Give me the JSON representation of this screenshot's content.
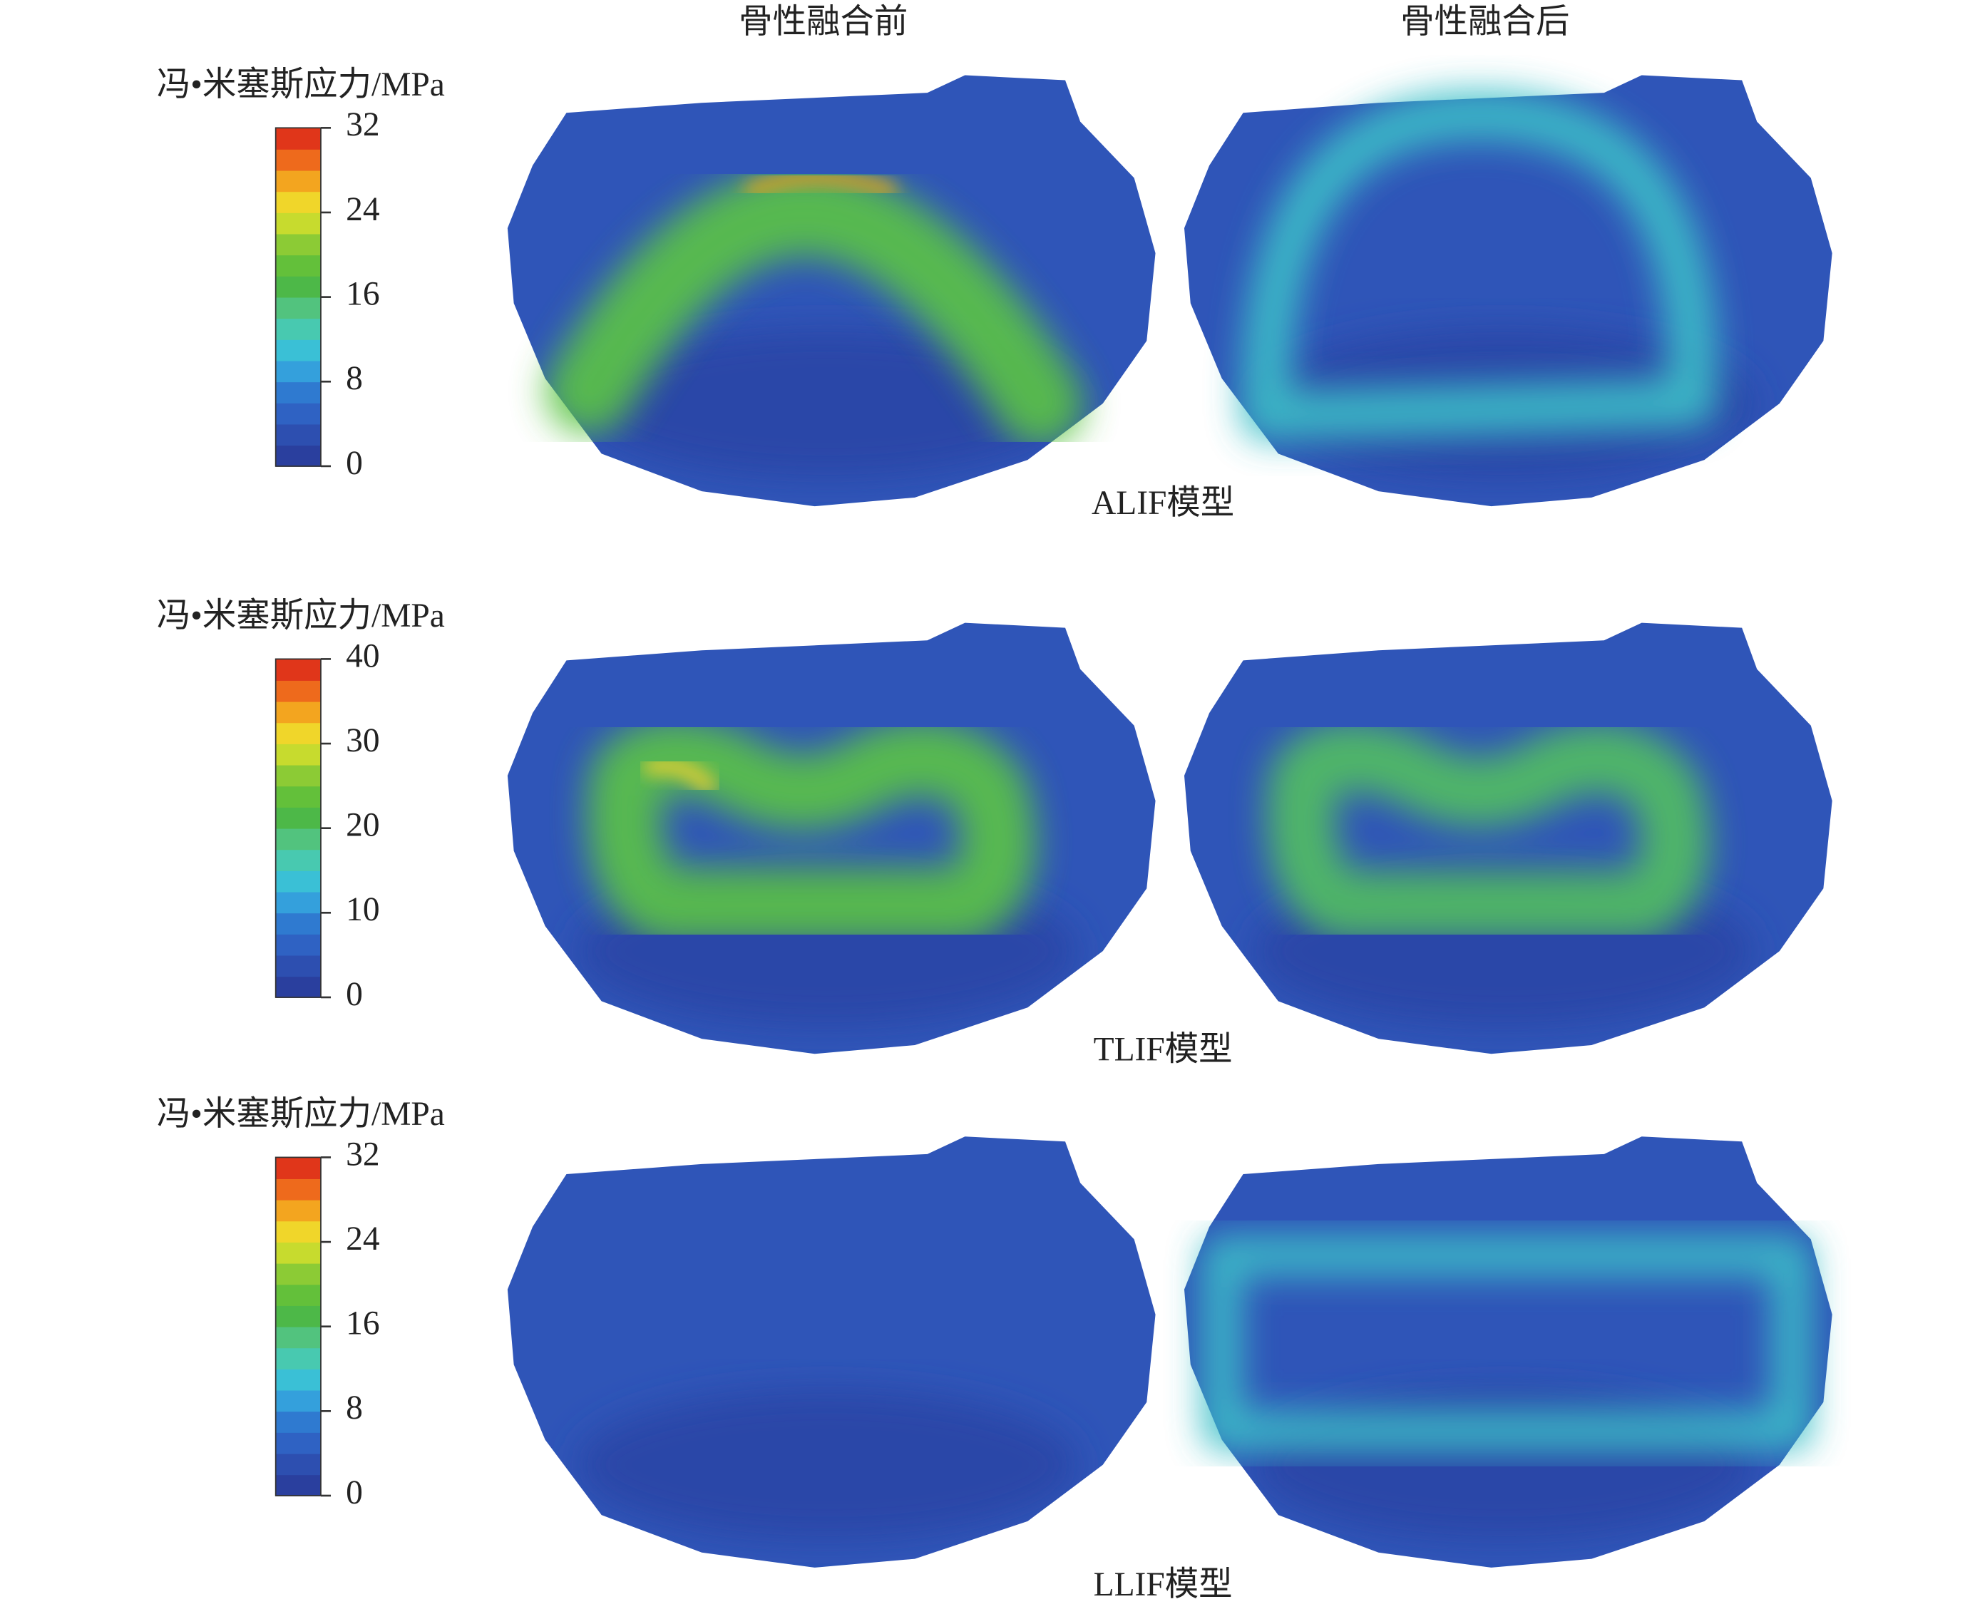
{
  "column_headers": [
    "骨性融合前",
    "骨性融合后"
  ],
  "rows": [
    {
      "colorbar_title": "冯•米塞斯应力/MPa",
      "colorbar_ticks": [
        32,
        24,
        16,
        8,
        0
      ],
      "label": "ALIF模型"
    },
    {
      "colorbar_title": "冯•米塞斯应力/MPa",
      "colorbar_ticks": [
        40,
        30,
        20,
        10,
        0
      ],
      "label": "TLIF模型"
    },
    {
      "colorbar_title": "冯•米塞斯应力/MPa",
      "colorbar_ticks": [
        32,
        24,
        16,
        8,
        0
      ],
      "label": "LLIF模型"
    }
  ]
}
